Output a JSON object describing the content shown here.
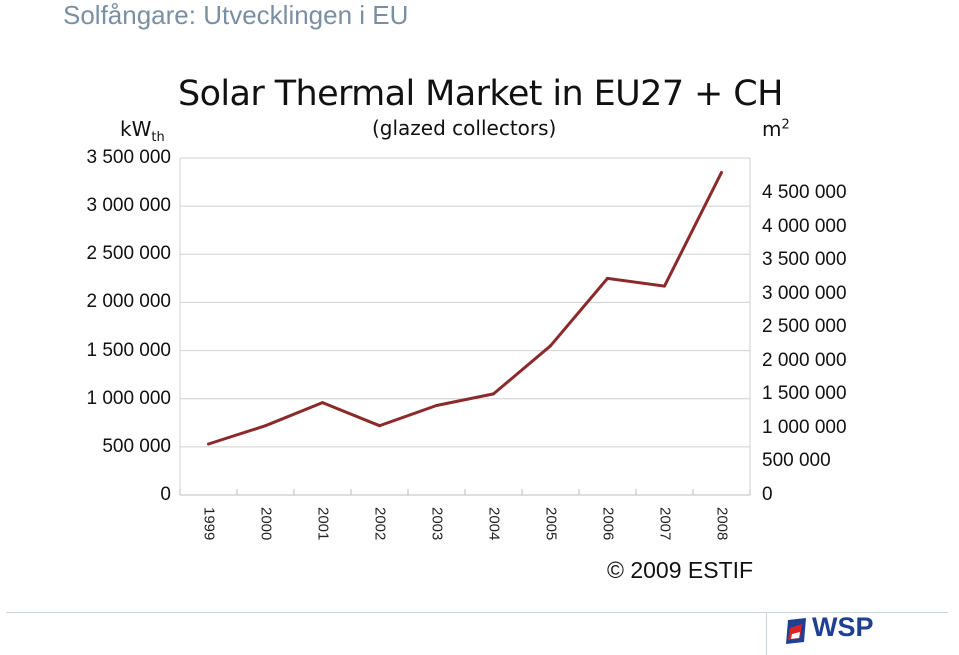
{
  "slide": {
    "title": "Solfångare: Utvecklingen i EU"
  },
  "chart_data": {
    "type": "line",
    "title": "Solar Thermal Market in EU27 + CH",
    "subtitle": "(glazed collectors)",
    "ylabel": "kW",
    "ylabel_sub": "th",
    "y2label": "m",
    "y2label_sup": "2",
    "x": [
      "1999",
      "2000",
      "2001",
      "2002",
      "2003",
      "2004",
      "2005",
      "2006",
      "2007",
      "2008"
    ],
    "series": [
      {
        "values": [
          530000,
          720000,
          960000,
          720000,
          930000,
          1050000,
          1550000,
          2250000,
          2170000,
          3350000
        ],
        "color": "#8b2a2a"
      }
    ],
    "ylim": [
      0,
      3500000
    ],
    "y_ticks": [
      "0",
      "500 000",
      "1 000 000",
      "1 500 000",
      "2 000 000",
      "2 500 000",
      "3 000 000",
      "3 500 000"
    ],
    "y2lim": [
      0,
      5000000
    ],
    "y2_ticks": [
      "0",
      "500 000",
      "1 000 000",
      "1 500 000",
      "2 000 000",
      "2 500 000",
      "3 000 000",
      "3 500 000",
      "4 000 000",
      "4 500 000"
    ],
    "grid": true
  },
  "copyright": "© 2009 ESTIF",
  "logo": {
    "text": "WSP",
    "color": "#1f3f93",
    "accent": "#d8232a"
  }
}
